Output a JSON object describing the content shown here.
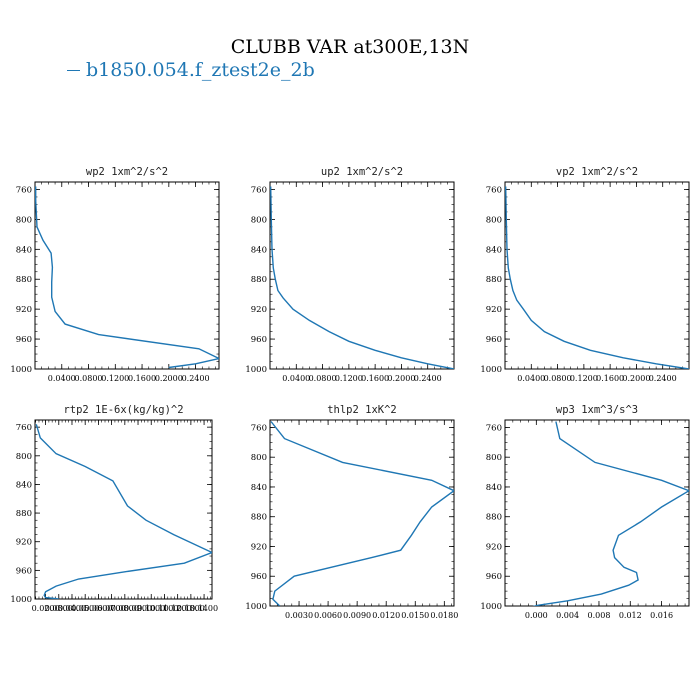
{
  "figure": {
    "title": "CLUBB VAR at300E,13N",
    "legend": [
      {
        "label": "b1850.054.f_ztest2e_2b",
        "color": "#1f77b4"
      }
    ]
  },
  "chart_data": [
    {
      "type": "line",
      "title": "wp2  1xm^2/s^2",
      "xlim": [
        0,
        0.275
      ],
      "ylim": [
        1000,
        750
      ],
      "xticks": [
        0.04,
        0.08,
        0.12,
        0.16,
        0.2,
        0.24
      ],
      "xtick_labels": [
        "0.0400",
        "0.0800",
        "0.1200",
        "0.1600",
        "0.2000",
        "0.2400"
      ],
      "yticks": [
        760,
        800,
        840,
        880,
        920,
        960,
        1000
      ],
      "ytick_labels": [
        "760",
        "800",
        "840",
        "880",
        "920",
        "960",
        "1000"
      ],
      "series": [
        {
          "name": "b1850.054.f_ztest2e_2b",
          "color": "#1f77b4",
          "x": [
            0.001,
            0.001,
            0.003,
            0.012,
            0.024,
            0.026,
            0.025,
            0.025,
            0.03,
            0.045,
            0.095,
            0.245,
            0.275,
            0.24,
            0.2
          ],
          "y": [
            756,
            775,
            810,
            828,
            845,
            864,
            884,
            904,
            923,
            940,
            954,
            973,
            986,
            993,
            998
          ]
        }
      ]
    },
    {
      "type": "line",
      "title": "up2  1xm^2/s^2",
      "xlim": [
        0,
        0.28
      ],
      "ylim": [
        1000,
        750
      ],
      "xticks": [
        0.04,
        0.08,
        0.12,
        0.16,
        0.2,
        0.24
      ],
      "xtick_labels": [
        "0.0400",
        "0.0800",
        "0.1200",
        "0.1600",
        "0.2000",
        "0.2400"
      ],
      "yticks": [
        760,
        800,
        840,
        880,
        920,
        960,
        1000
      ],
      "ytick_labels": [
        "760",
        "800",
        "840",
        "880",
        "920",
        "960",
        "1000"
      ],
      "series": [
        {
          "name": "b1850.054.f_ztest2e_2b",
          "color": "#1f77b4",
          "x": [
            0.001,
            0.002,
            0.003,
            0.005,
            0.008,
            0.012,
            0.02,
            0.035,
            0.06,
            0.09,
            0.12,
            0.16,
            0.2,
            0.24,
            0.28
          ],
          "y": [
            756,
            800,
            840,
            865,
            880,
            895,
            905,
            920,
            935,
            950,
            963,
            975,
            985,
            993,
            1000
          ]
        }
      ]
    },
    {
      "type": "line",
      "title": "vp2  1xm^2/s^2",
      "xlim": [
        0,
        0.28
      ],
      "ylim": [
        1000,
        750
      ],
      "xticks": [
        0.04,
        0.08,
        0.12,
        0.16,
        0.2,
        0.24
      ],
      "xtick_labels": [
        "0.0400",
        "0.0800",
        "0.1200",
        "0.1600",
        "0.2000",
        "0.2400"
      ],
      "yticks": [
        760,
        800,
        840,
        880,
        920,
        960,
        1000
      ],
      "ytick_labels": [
        "760",
        "800",
        "840",
        "880",
        "920",
        "960",
        "1000"
      ],
      "series": [
        {
          "name": "b1850.054.f_ztest2e_2b",
          "color": "#1f77b4",
          "x": [
            0.001,
            0.002,
            0.003,
            0.005,
            0.008,
            0.012,
            0.018,
            0.028,
            0.04,
            0.06,
            0.09,
            0.13,
            0.18,
            0.23,
            0.28
          ],
          "y": [
            756,
            800,
            840,
            865,
            880,
            895,
            908,
            920,
            935,
            950,
            963,
            975,
            985,
            993,
            1000
          ]
        }
      ]
    },
    {
      "type": "line",
      "title": "rtp2  1E-6x(kg/kg)^2",
      "xlim": [
        0.012,
        0.146
      ],
      "ylim": [
        1000,
        750
      ],
      "xticks": [
        0.02,
        0.03,
        0.04,
        0.05,
        0.06,
        0.07,
        0.08,
        0.09,
        0.1,
        0.11,
        0.12,
        0.13,
        0.14
      ],
      "xtick_labels": [
        "0.0200",
        "0.0300",
        "0.0400",
        "0.0500",
        "0.0600",
        "0.0700",
        "0.0800",
        "0.0900",
        "0.1000",
        "0.1100",
        "0.1200",
        "0.1300",
        "0.1400"
      ],
      "yticks": [
        760,
        800,
        840,
        880,
        920,
        960,
        1000
      ],
      "ytick_labels": [
        "760",
        "800",
        "840",
        "880",
        "920",
        "960",
        "1000"
      ],
      "series": [
        {
          "name": "b1850.054.f_ztest2e_2b",
          "color": "#1f77b4",
          "x": [
            0.013,
            0.016,
            0.028,
            0.05,
            0.071,
            0.082,
            0.096,
            0.117,
            0.146,
            0.125,
            0.08,
            0.045,
            0.028,
            0.02,
            0.019,
            0.02,
            0.03
          ],
          "y": [
            756,
            775,
            797,
            815,
            835,
            870,
            890,
            910,
            935,
            950,
            962,
            972,
            982,
            990,
            995,
            998,
            1000
          ]
        }
      ]
    },
    {
      "type": "line",
      "title": "thlp2  1xK^2",
      "xlim": [
        0,
        0.019
      ],
      "ylim": [
        1000,
        750
      ],
      "xticks": [
        0.003,
        0.006,
        0.009,
        0.012,
        0.015,
        0.018
      ],
      "xtick_labels": [
        "0.0030",
        "0.0060",
        "0.0090",
        "0.0120",
        "0.0150",
        "0.0180"
      ],
      "yticks": [
        760,
        800,
        840,
        880,
        920,
        960,
        1000
      ],
      "ytick_labels": [
        "760",
        "800",
        "840",
        "880",
        "920",
        "960",
        "1000"
      ],
      "series": [
        {
          "name": "b1850.054.f_ztest2e_2b",
          "color": "#1f77b4",
          "x": [
            0.0001,
            0.0015,
            0.0075,
            0.0167,
            0.019,
            0.0167,
            0.0155,
            0.0146,
            0.0135,
            0.0105,
            0.0025,
            0.0005,
            0.0003,
            0.001
          ],
          "y": [
            752,
            775,
            807,
            831,
            845,
            867,
            887,
            905,
            925,
            935,
            960,
            980,
            991,
            1000
          ]
        }
      ]
    },
    {
      "type": "line",
      "title": "wp3  1xm^3/s^3",
      "xlim": [
        -0.004,
        0.0195
      ],
      "ylim": [
        1000,
        750
      ],
      "xticks": [
        0.0,
        0.004,
        0.008,
        0.012,
        0.016
      ],
      "xtick_labels": [
        "0.000",
        "0.004",
        "0.008",
        "0.012",
        "0.016"
      ],
      "yticks": [
        760,
        800,
        840,
        880,
        920,
        960,
        1000
      ],
      "ytick_labels": [
        "760",
        "800",
        "840",
        "880",
        "920",
        "960",
        "1000"
      ],
      "series": [
        {
          "name": "b1850.054.f_ztest2e_2b",
          "color": "#1f77b4",
          "x": [
            0.0025,
            0.003,
            0.0075,
            0.016,
            0.0195,
            0.016,
            0.0133,
            0.0105,
            0.0098,
            0.01,
            0.0112,
            0.0128,
            0.013,
            0.0118,
            0.0083,
            0.004,
            0.0002,
            -0.0005
          ],
          "y": [
            752,
            775,
            807,
            831,
            845,
            867,
            887,
            905,
            925,
            935,
            948,
            955,
            965,
            972,
            984,
            993,
            999,
            1001
          ]
        }
      ]
    }
  ]
}
